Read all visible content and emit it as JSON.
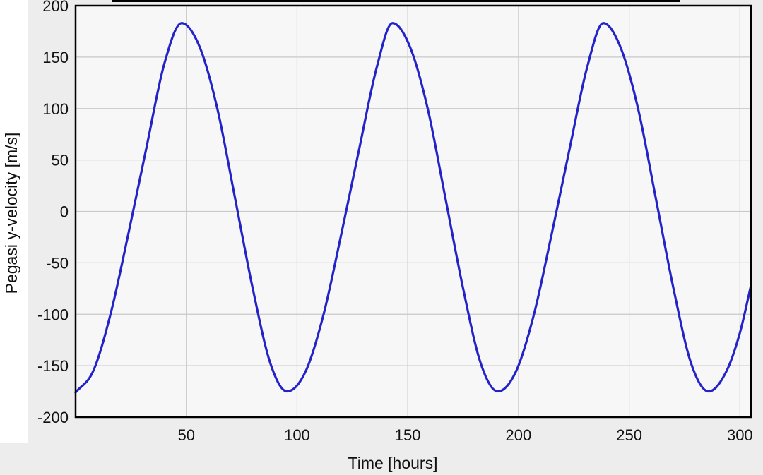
{
  "chart_data": {
    "type": "line",
    "title": "",
    "xlabel": "Time [hours]",
    "ylabel": "Pegasi y-velocity [m/s]",
    "xlim": [
      0,
      305
    ],
    "ylim": [
      -200,
      200
    ],
    "x_ticks": [
      50,
      100,
      150,
      200,
      250,
      300
    ],
    "y_ticks": [
      200,
      150,
      100,
      50,
      0,
      -50,
      -100,
      -150,
      -200
    ],
    "x_tick_labels": [
      "50",
      "100",
      "150",
      "200",
      "250",
      "300"
    ],
    "y_tick_labels": [
      "200",
      "150",
      "100",
      "50",
      "0",
      "-50",
      "-100",
      "-150",
      "-200"
    ],
    "grid": true,
    "series": [
      {
        "color": "#2323c8",
        "x": [
          0,
          8,
          16,
          24,
          32,
          40,
          47.9,
          56,
          64,
          72,
          80,
          88,
          95.5,
          104,
          112,
          120,
          128,
          136,
          143.1,
          151,
          159,
          167,
          175,
          183,
          190.7,
          199,
          207,
          215,
          223,
          231,
          238.3,
          246,
          254,
          262,
          270,
          278,
          285.9,
          294,
          300,
          305
        ],
        "y": [
          -176,
          -155,
          -98,
          -20,
          62,
          143,
          183,
          160,
          100,
          13,
          -75,
          -148,
          -175,
          -155,
          -100,
          -22,
          60,
          140,
          183,
          160,
          100,
          13,
          -75,
          -148,
          -175,
          -155,
          -100,
          -22,
          60,
          140,
          183,
          160,
          100,
          13,
          -75,
          -148,
          -175,
          -155,
          -118,
          -72
        ]
      }
    ],
    "colors": {
      "background": "#ffffff",
      "plot_background": "#f7f7f7",
      "outer_panel": "#ededed",
      "grid": "#c9c9c9",
      "axes": "#000000",
      "line": "#2323c8"
    }
  }
}
